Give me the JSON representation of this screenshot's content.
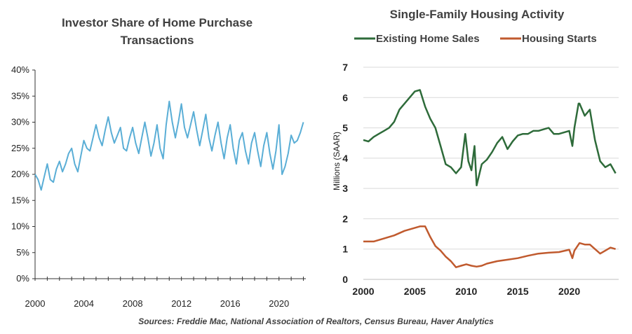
{
  "source_note": "Sources: Freddie Mac, National Association of Realtors, Census Bureau, Haver Analytics",
  "chart_data": [
    {
      "type": "line",
      "title": "Investor Share of Home Purchase Transactions",
      "title_lines": [
        "Investor Share of Home Purchase",
        "Transactions"
      ],
      "xlabel": "",
      "ylabel": "",
      "xlim": [
        2000,
        2022.2
      ],
      "ylim": [
        0,
        40
      ],
      "x_ticks": [
        "2000",
        "2004",
        "2008",
        "2012",
        "2016",
        "2020"
      ],
      "y_ticks": [
        "0%",
        "5%",
        "10%",
        "15%",
        "20%",
        "25%",
        "30%",
        "35%",
        "40%"
      ],
      "grid": false,
      "series": [
        {
          "name": "",
          "color": "#5aaed6",
          "x": [
            2000.0,
            2000.25,
            2000.5,
            2000.75,
            2001.0,
            2001.25,
            2001.5,
            2001.75,
            2002.0,
            2002.25,
            2002.5,
            2002.75,
            2003.0,
            2003.25,
            2003.5,
            2003.75,
            2004.0,
            2004.25,
            2004.5,
            2004.75,
            2005.0,
            2005.25,
            2005.5,
            2005.75,
            2006.0,
            2006.25,
            2006.5,
            2006.75,
            2007.0,
            2007.25,
            2007.5,
            2007.75,
            2008.0,
            2008.25,
            2008.5,
            2008.75,
            2009.0,
            2009.25,
            2009.5,
            2009.75,
            2010.0,
            2010.25,
            2010.5,
            2010.75,
            2011.0,
            2011.25,
            2011.5,
            2011.75,
            2012.0,
            2012.25,
            2012.5,
            2012.75,
            2013.0,
            2013.25,
            2013.5,
            2013.75,
            2014.0,
            2014.25,
            2014.5,
            2014.75,
            2015.0,
            2015.25,
            2015.5,
            2015.75,
            2016.0,
            2016.25,
            2016.5,
            2016.75,
            2017.0,
            2017.25,
            2017.5,
            2017.75,
            2018.0,
            2018.25,
            2018.5,
            2018.75,
            2019.0,
            2019.25,
            2019.5,
            2019.75,
            2020.0,
            2020.25,
            2020.5,
            2020.75,
            2021.0,
            2021.25,
            2021.5,
            2021.75,
            2022.0
          ],
          "values": [
            20.0,
            19.0,
            17.0,
            19.5,
            22.0,
            19.0,
            18.5,
            21.0,
            22.5,
            20.5,
            22.0,
            24.0,
            25.0,
            22.0,
            20.5,
            23.5,
            26.5,
            25.0,
            24.5,
            27.0,
            29.5,
            27.0,
            25.5,
            28.5,
            31.0,
            28.0,
            26.0,
            27.5,
            29.0,
            25.0,
            24.5,
            27.0,
            29.0,
            26.0,
            24.0,
            27.0,
            30.0,
            27.0,
            23.5,
            26.0,
            29.5,
            25.0,
            23.0,
            29.5,
            34.0,
            30.0,
            27.0,
            30.0,
            33.5,
            29.0,
            27.0,
            29.5,
            32.0,
            28.5,
            25.5,
            28.5,
            31.5,
            27.0,
            24.5,
            27.5,
            30.0,
            26.0,
            23.0,
            27.0,
            29.5,
            25.0,
            22.0,
            26.5,
            28.0,
            24.5,
            22.0,
            26.0,
            28.0,
            24.5,
            21.5,
            25.5,
            28.0,
            24.0,
            21.0,
            24.5,
            29.5,
            20.0,
            21.5,
            24.0,
            27.5,
            26.0,
            26.5,
            28.0,
            30.0
          ]
        }
      ]
    },
    {
      "type": "line",
      "title": "Single-Family Housing Activity",
      "xlabel": "",
      "ylabel": "Millions (SAAR)",
      "xlim": [
        2000,
        2024.8
      ],
      "ylim": [
        0,
        7
      ],
      "x_ticks": [
        "2000",
        "2005",
        "2010",
        "2015",
        "2020"
      ],
      "y_ticks": [
        "0",
        "1",
        "2",
        "3",
        "4",
        "5",
        "6",
        "7"
      ],
      "grid": true,
      "legend": "top",
      "series": [
        {
          "name": "Existing Home Sales",
          "color": "#2e6b3a",
          "x": [
            2000.0,
            2000.5,
            2001.0,
            2001.5,
            2002.0,
            2002.5,
            2003.0,
            2003.5,
            2004.0,
            2004.5,
            2005.0,
            2005.5,
            2006.0,
            2006.5,
            2007.0,
            2007.5,
            2008.0,
            2008.5,
            2009.0,
            2009.5,
            2009.9,
            2010.2,
            2010.5,
            2010.8,
            2011.0,
            2011.5,
            2012.0,
            2012.5,
            2013.0,
            2013.5,
            2014.0,
            2014.5,
            2015.0,
            2015.5,
            2016.0,
            2016.5,
            2017.0,
            2017.5,
            2018.0,
            2018.5,
            2019.0,
            2019.5,
            2020.0,
            2020.3,
            2020.5,
            2020.9,
            2021.0,
            2021.5,
            2022.0,
            2022.5,
            2023.0,
            2023.5,
            2024.0,
            2024.5
          ],
          "values": [
            4.6,
            4.55,
            4.7,
            4.8,
            4.9,
            5.0,
            5.2,
            5.6,
            5.8,
            6.0,
            6.2,
            6.25,
            5.7,
            5.3,
            5.0,
            4.4,
            3.8,
            3.7,
            3.5,
            3.7,
            4.8,
            3.9,
            3.6,
            4.4,
            3.1,
            3.8,
            3.95,
            4.2,
            4.5,
            4.7,
            4.3,
            4.55,
            4.75,
            4.8,
            4.8,
            4.9,
            4.9,
            4.95,
            5.0,
            4.8,
            4.8,
            4.85,
            4.9,
            4.4,
            5.0,
            5.8,
            5.8,
            5.4,
            5.6,
            4.6,
            3.9,
            3.7,
            3.8,
            3.5
          ]
        },
        {
          "name": "Housing Starts",
          "color": "#c05a2e",
          "x": [
            2000.0,
            2001.0,
            2002.0,
            2003.0,
            2004.0,
            2005.0,
            2005.5,
            2006.0,
            2006.5,
            2007.0,
            2007.5,
            2008.0,
            2008.5,
            2009.0,
            2009.5,
            2010.0,
            2010.5,
            2011.0,
            2011.5,
            2012.0,
            2013.0,
            2014.0,
            2015.0,
            2016.0,
            2017.0,
            2018.0,
            2019.0,
            2020.0,
            2020.3,
            2020.5,
            2021.0,
            2021.5,
            2022.0,
            2022.5,
            2023.0,
            2023.5,
            2024.0,
            2024.5
          ],
          "values": [
            1.25,
            1.25,
            1.35,
            1.45,
            1.6,
            1.7,
            1.75,
            1.75,
            1.4,
            1.1,
            0.95,
            0.75,
            0.6,
            0.4,
            0.45,
            0.5,
            0.45,
            0.42,
            0.45,
            0.52,
            0.6,
            0.65,
            0.7,
            0.78,
            0.85,
            0.88,
            0.9,
            0.98,
            0.7,
            0.95,
            1.2,
            1.15,
            1.15,
            1.0,
            0.85,
            0.95,
            1.05,
            1.0
          ]
        }
      ]
    }
  ]
}
